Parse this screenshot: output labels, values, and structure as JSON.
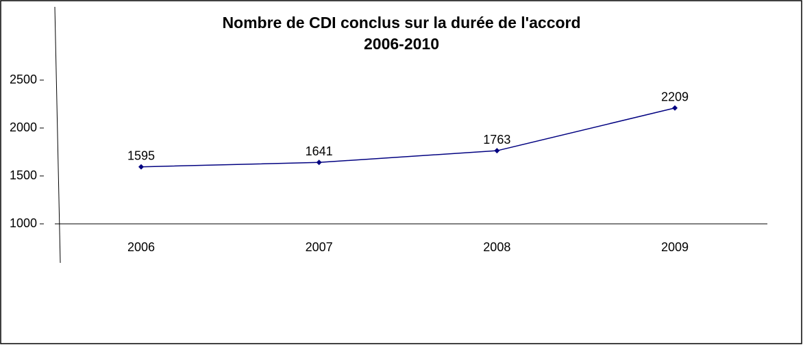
{
  "chart_data": {
    "type": "line",
    "title": "Nombre de CDI conclus sur la durée de l'accord",
    "subtitle": "2006-2010",
    "categories": [
      "2006",
      "2007",
      "2008",
      "2009"
    ],
    "series": [
      {
        "name": "CDI",
        "color": "#000080",
        "values": [
          1595,
          1641,
          1763,
          2209
        ]
      }
    ],
    "ylim": [
      1000,
      2500
    ],
    "yticks": [
      1000,
      1500,
      2000,
      2500
    ]
  }
}
